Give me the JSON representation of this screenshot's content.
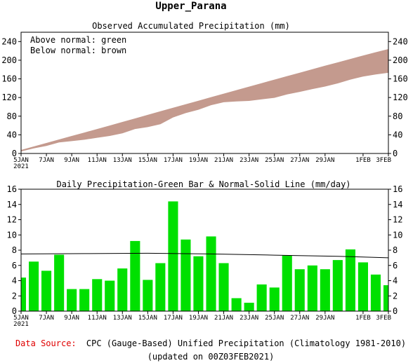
{
  "title": "Upper_Parana",
  "colors": {
    "above_normal_fill": "#c49a8e",
    "daily_bar": "#00e000",
    "normal_line": "#000000",
    "source_label": "#e00000"
  },
  "footer": {
    "source_label": "Data Source:",
    "source_text": "CPC (Gauge-Based) Unified Precipitation (Climatology 1981-2010)",
    "updated": "(updated on 00Z03FEB2021)"
  },
  "chart_data": [
    {
      "type": "area",
      "title": "Observed Accumulated Precipitation (mm)",
      "annotations": [
        "Above normal: green",
        "Below normal: brown"
      ],
      "ylim": [
        0,
        260
      ],
      "yticks": [
        0,
        40,
        80,
        120,
        160,
        200,
        240
      ],
      "xlim": [
        0,
        29
      ],
      "xticks": [
        {
          "day": 0,
          "label": "5JAN",
          "sub": "2021"
        },
        {
          "day": 2,
          "label": "7JAN"
        },
        {
          "day": 4,
          "label": "9JAN"
        },
        {
          "day": 6,
          "label": "11JAN"
        },
        {
          "day": 8,
          "label": "13JAN"
        },
        {
          "day": 10,
          "label": "15JAN"
        },
        {
          "day": 12,
          "label": "17JAN"
        },
        {
          "day": 14,
          "label": "19JAN"
        },
        {
          "day": 16,
          "label": "21JAN"
        },
        {
          "day": 18,
          "label": "23JAN"
        },
        {
          "day": 20,
          "label": "25JAN"
        },
        {
          "day": 22,
          "label": "27JAN"
        },
        {
          "day": 24,
          "label": "29JAN"
        },
        {
          "day": 27,
          "label": "1FEB"
        },
        {
          "day": 29,
          "label": "3FEB"
        }
      ],
      "series": [
        {
          "name": "Observed",
          "x": [
            0,
            1,
            2,
            3,
            4,
            5,
            6,
            7,
            8,
            9,
            10,
            11,
            12,
            13,
            14,
            15,
            16,
            17,
            18,
            19,
            20,
            21,
            22,
            23,
            24,
            25,
            26,
            27,
            28,
            29
          ],
          "values": [
            4.4,
            10.9,
            16.2,
            23.6,
            26.5,
            29.4,
            33.6,
            37.6,
            43.2,
            52.4,
            56.5,
            62.8,
            77.2,
            86.6,
            93.8,
            103.6,
            109.9,
            111.6,
            112.7,
            116.2,
            119.3,
            126.6,
            132.1,
            138.1,
            143.6,
            150.3,
            158.4,
            164.8,
            169.6,
            173
          ]
        },
        {
          "name": "Normal",
          "x": [
            0,
            1,
            2,
            3,
            4,
            5,
            6,
            7,
            8,
            9,
            10,
            11,
            12,
            13,
            14,
            15,
            16,
            17,
            18,
            19,
            20,
            21,
            22,
            23,
            24,
            25,
            26,
            27,
            28,
            29
          ],
          "values": [
            7.5,
            15,
            22.5,
            30,
            37.5,
            45,
            52.5,
            60,
            67.6,
            75.2,
            82.8,
            90.4,
            98,
            105.6,
            113.2,
            120.8,
            128.4,
            135.9,
            143.4,
            150.9,
            158.4,
            165.9,
            173.3,
            180.7,
            188.1,
            195.4,
            202.7,
            210,
            217.1,
            224
          ]
        }
      ]
    },
    {
      "type": "bar",
      "title": "Daily Precipitation-Green Bar & Normal-Solid Line (mm/day)",
      "ylim": [
        0,
        16
      ],
      "yticks": [
        0,
        2,
        4,
        6,
        8,
        10,
        12,
        14,
        16
      ],
      "xlim": [
        0,
        29
      ],
      "xticks": [
        {
          "day": 0,
          "label": "5JAN",
          "sub": "2021"
        },
        {
          "day": 2,
          "label": "7JAN"
        },
        {
          "day": 4,
          "label": "9JAN"
        },
        {
          "day": 6,
          "label": "11JAN"
        },
        {
          "day": 8,
          "label": "13JAN"
        },
        {
          "day": 10,
          "label": "15JAN"
        },
        {
          "day": 12,
          "label": "17JAN"
        },
        {
          "day": 14,
          "label": "19JAN"
        },
        {
          "day": 16,
          "label": "21JAN"
        },
        {
          "day": 18,
          "label": "23JAN"
        },
        {
          "day": 20,
          "label": "25JAN"
        },
        {
          "day": 22,
          "label": "27JAN"
        },
        {
          "day": 24,
          "label": "29JAN"
        },
        {
          "day": 27,
          "label": "1FEB"
        },
        {
          "day": 29,
          "label": "3FEB"
        }
      ],
      "series": [
        {
          "name": "Daily precipitation",
          "x": [
            0,
            1,
            2,
            3,
            4,
            5,
            6,
            7,
            8,
            9,
            10,
            11,
            12,
            13,
            14,
            15,
            16,
            17,
            18,
            19,
            20,
            21,
            22,
            23,
            24,
            25,
            26,
            27,
            28,
            29
          ],
          "values": [
            4.4,
            6.5,
            5.3,
            7.4,
            2.9,
            2.9,
            4.2,
            4.0,
            5.6,
            9.2,
            4.1,
            6.3,
            14.4,
            9.4,
            7.2,
            9.8,
            6.3,
            1.7,
            1.1,
            3.5,
            3.1,
            7.3,
            5.5,
            6.0,
            5.5,
            6.7,
            8.1,
            6.4,
            4.8,
            3.4
          ]
        },
        {
          "name": "Normal",
          "x": [
            0,
            5,
            10,
            15,
            20,
            25,
            29
          ],
          "values": [
            7.5,
            7.55,
            7.6,
            7.5,
            7.35,
            7.2,
            7.0
          ]
        }
      ]
    }
  ]
}
